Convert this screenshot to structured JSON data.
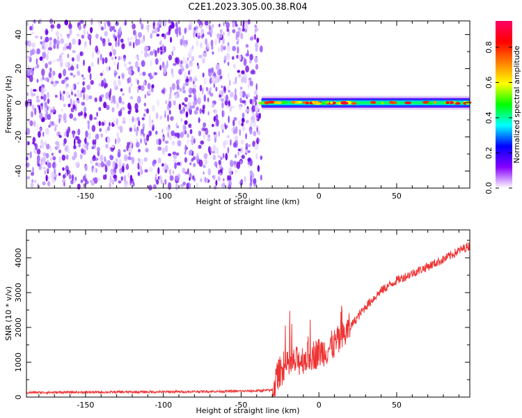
{
  "title": "C2E1.2023.305.00.38.R04",
  "chart_data": [
    {
      "type": "heatmap",
      "name": "spectrogram",
      "xlabel": "Height of straight line (km)",
      "ylabel": "Frequency (Hz)",
      "xlim": [
        -188,
        97
      ],
      "ylim": [
        -50,
        48
      ],
      "xticks": [
        -150,
        -100,
        -50,
        0,
        50
      ],
      "yticks": [
        -40,
        -20,
        0,
        20,
        40
      ],
      "noise_region_x": [
        -188,
        -37
      ],
      "signal_band_x": [
        -37,
        97
      ],
      "signal_band_center_hz": 0,
      "colorbar": {
        "label": "Normalized spectral amplitude",
        "range": [
          0.0,
          0.95
        ],
        "ticks": [
          0.0,
          0.2,
          0.4,
          0.6,
          0.8
        ],
        "tick_labels": [
          "0.0",
          "0.2",
          "0.4",
          "0.6",
          "0.8"
        ],
        "colors": [
          "#ffffff",
          "#8800ff",
          "#0000ff",
          "#00ffff",
          "#00ff00",
          "#ffff00",
          "#ff8000",
          "#ff0000",
          "#ff0066"
        ]
      }
    },
    {
      "type": "line",
      "name": "snr",
      "xlabel": "Height of straight line (km)",
      "ylabel": "SNR (10 * v/v)",
      "xlim": [
        -188,
        97
      ],
      "ylim": [
        0,
        4800
      ],
      "xticks": [
        -150,
        -100,
        -50,
        0,
        50
      ],
      "yticks": [
        0,
        1000,
        2000,
        3000,
        4000
      ],
      "color": "#ee3333",
      "x": [
        -188,
        -150,
        -100,
        -50,
        -40,
        -30,
        -25,
        -15,
        -5,
        5,
        15,
        20,
        30,
        40,
        50,
        60,
        70,
        80,
        90,
        97
      ],
      "y": [
        130,
        140,
        150,
        170,
        180,
        200,
        750,
        1000,
        1200,
        1350,
        1700,
        2000,
        2600,
        3050,
        3350,
        3550,
        3750,
        3950,
        4200,
        4350
      ]
    }
  ]
}
